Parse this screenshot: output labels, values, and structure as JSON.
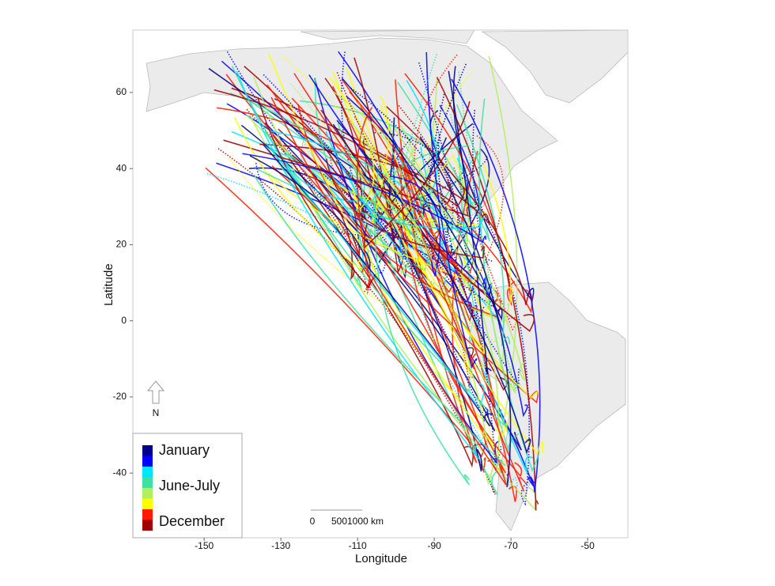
{
  "chart_data": {
    "type": "track-map",
    "x_label": "Longitude",
    "y_label": "Latitude",
    "xlim": [
      -168.6,
      -39.5
    ],
    "ylim": [
      -57,
      76.4
    ],
    "xticks": [
      -150,
      -130,
      -110,
      -90,
      -70,
      -50
    ],
    "yticks": [
      -40,
      -20,
      0,
      20,
      40,
      60
    ],
    "legend": {
      "colors": [
        "#00008b",
        "#0000ff",
        "#00e5ff",
        "#40e0a0",
        "#b0f060",
        "#ffff00",
        "#ff1a00",
        "#a00000"
      ],
      "labels": [
        "January",
        "June-July",
        "December"
      ]
    },
    "scale_bar": {
      "labels": [
        "0",
        "500",
        "1000 km"
      ]
    },
    "north_label": "N"
  }
}
